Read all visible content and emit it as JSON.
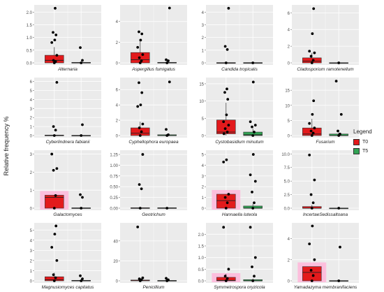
{
  "y_axis_title": "Relative frequency %",
  "legend": {
    "title": "Legend",
    "items": [
      {
        "label": "T0",
        "color": "#e31a1c"
      },
      {
        "label": "T5",
        "color": "#31a354"
      }
    ]
  },
  "colors": {
    "panel_background": "#ebebeb",
    "grid": "#ffffff",
    "T0": "#e31a1c",
    "T5": "#31a354",
    "highlight": "#ffb6d9",
    "point": "#000000"
  },
  "chart_data": [
    {
      "type": "box",
      "title": "Alternaria",
      "ylim": [
        0,
        2.2
      ],
      "yticks": [
        0,
        0.5,
        1.0,
        1.5,
        2.0
      ],
      "tick_labels": [
        "0.0",
        "0.5",
        "1.0",
        "1.5",
        "2.0"
      ],
      "series": [
        {
          "name": "T0",
          "q1": 0.0,
          "median": 0.1,
          "q3": 0.3,
          "whisker_low": 0.0,
          "whisker_high": 0.62,
          "points": [
            0.0,
            0.05,
            0.1,
            0.3,
            0.8,
            0.9,
            1.1,
            1.2,
            2.15
          ],
          "highlight": false
        },
        {
          "name": "T5",
          "q1": 0.0,
          "median": 0.0,
          "q3": 0.02,
          "whisker_low": 0.0,
          "whisker_high": 0.04,
          "points": [
            0.0,
            0.1,
            0.6
          ],
          "highlight": false
        }
      ]
    },
    {
      "type": "box",
      "title": "Aspergillus fumigatus",
      "ylim": [
        0,
        5.4
      ],
      "yticks": [
        0,
        2,
        4
      ],
      "tick_labels": [
        "0",
        "2",
        "4"
      ],
      "series": [
        {
          "name": "T0",
          "q1": 0.0,
          "median": 0.3,
          "q3": 1.0,
          "whisker_low": 0.0,
          "whisker_high": 2.2,
          "points": [
            0.0,
            0.2,
            0.5,
            0.8,
            1.5,
            2.2,
            2.8,
            3.0
          ],
          "highlight": false
        },
        {
          "name": "T5",
          "q1": 0.0,
          "median": 0.0,
          "q3": 0.05,
          "whisker_low": 0.0,
          "whisker_high": 0.1,
          "points": [
            0.0,
            0.2,
            0.3,
            5.3
          ],
          "highlight": false
        }
      ]
    },
    {
      "type": "box",
      "title": "Candida tropicalis",
      "ylim": [
        0,
        4.4
      ],
      "yticks": [
        0,
        1,
        2,
        3,
        4
      ],
      "tick_labels": [
        "0",
        "1",
        "2",
        "3",
        "4"
      ],
      "series": [
        {
          "name": "T0",
          "q1": 0.0,
          "median": 0.0,
          "q3": 0.02,
          "whisker_low": 0.0,
          "whisker_high": 0.04,
          "points": [
            0.0,
            1.05,
            1.3,
            4.3
          ],
          "highlight": false
        },
        {
          "name": "T5",
          "q1": 0.0,
          "median": 0.0,
          "q3": 0.02,
          "whisker_low": 0.0,
          "whisker_high": 0.04,
          "points": [
            0.0
          ],
          "highlight": false
        }
      ]
    },
    {
      "type": "box",
      "title": "Cladosporium ramotenellum",
      "ylim": [
        0,
        6.7
      ],
      "yticks": [
        0,
        2,
        4,
        6
      ],
      "tick_labels": [
        "0",
        "2",
        "4",
        "6"
      ],
      "series": [
        {
          "name": "T0",
          "q1": 0.0,
          "median": 0.2,
          "q3": 0.6,
          "whisker_low": 0.0,
          "whisker_high": 1.2,
          "points": [
            0.0,
            0.3,
            0.8,
            1.2,
            1.4,
            3.5,
            6.5
          ],
          "highlight": false
        },
        {
          "name": "T5",
          "q1": 0.0,
          "median": 0.0,
          "q3": 0.02,
          "whisker_low": 0.0,
          "whisker_high": 0.04,
          "points": [
            0.0
          ],
          "highlight": false
        }
      ]
    },
    {
      "type": "box",
      "title": "Cyberlindnera fabianii",
      "ylim": [
        0,
        6.2
      ],
      "yticks": [
        0,
        1,
        2,
        3,
        4,
        5,
        6
      ],
      "tick_labels": [
        "0",
        "1",
        "2",
        "3",
        "4",
        "5",
        "6"
      ],
      "series": [
        {
          "name": "T0",
          "q1": 0.0,
          "median": 0.0,
          "q3": 0.05,
          "whisker_low": 0.0,
          "whisker_high": 0.1,
          "points": [
            0.0,
            0.6,
            1.0,
            5.9
          ],
          "highlight": false
        },
        {
          "name": "T5",
          "q1": 0.0,
          "median": 0.0,
          "q3": 0.02,
          "whisker_low": 0.0,
          "whisker_high": 0.04,
          "points": [
            0.0,
            1.2
          ],
          "highlight": false
        }
      ]
    },
    {
      "type": "box",
      "title": "Cyphellophora europaea",
      "ylim": [
        0,
        7.3
      ],
      "yticks": [
        0,
        2,
        4,
        6
      ],
      "tick_labels": [
        "0",
        "2",
        "4",
        "6"
      ],
      "series": [
        {
          "name": "T0",
          "q1": 0.0,
          "median": 0.3,
          "q3": 1.0,
          "whisker_low": 0.0,
          "whisker_high": 1.8,
          "points": [
            0.0,
            0.5,
            1.0,
            1.5,
            3.8,
            4.0,
            5.6,
            6.9
          ],
          "highlight": false
        },
        {
          "name": "T5",
          "q1": 0.0,
          "median": 0.0,
          "q3": 0.1,
          "whisker_low": 0.0,
          "whisker_high": 0.2,
          "points": [
            0.0,
            0.1,
            0.8,
            7.0
          ],
          "highlight": false
        }
      ]
    },
    {
      "type": "box",
      "title": "Cystobasidium minutum",
      "ylim": [
        0,
        16.2
      ],
      "yticks": [
        0,
        5,
        10,
        15
      ],
      "tick_labels": [
        "0",
        "5",
        "10",
        "15"
      ],
      "series": [
        {
          "name": "T0",
          "q1": 0.5,
          "median": 1.0,
          "q3": 4.5,
          "whisker_low": 0.0,
          "whisker_high": 9.5,
          "points": [
            0.5,
            1.0,
            2.0,
            3.0,
            4.0,
            6.0,
            10.5,
            12.5,
            13.5
          ],
          "highlight": false
        },
        {
          "name": "T5",
          "q1": 0.0,
          "median": 0.2,
          "q3": 1.0,
          "whisker_low": 0.0,
          "whisker_high": 2.0,
          "points": [
            0.0,
            1.0,
            2.5,
            3.0,
            4.0,
            15.5
          ],
          "highlight": false
        }
      ]
    },
    {
      "type": "box",
      "title": "Fusarium",
      "ylim": [
        0,
        18.5
      ],
      "yticks": [
        0,
        5,
        10,
        15
      ],
      "tick_labels": [
        "0",
        "5",
        "10",
        "15"
      ],
      "series": [
        {
          "name": "T0",
          "q1": 0.0,
          "median": 0.5,
          "q3": 2.5,
          "whisker_low": 0.0,
          "whisker_high": 5.5,
          "points": [
            0.0,
            0.8,
            1.5,
            2.5,
            4.0,
            7.0,
            11.5
          ],
          "highlight": false
        },
        {
          "name": "T5",
          "q1": 0.0,
          "median": 0.0,
          "q3": 0.5,
          "whisker_low": 0.0,
          "whisker_high": 1.0,
          "points": [
            0.0,
            0.5,
            1.5,
            7.0,
            18.0
          ],
          "highlight": false
        }
      ]
    },
    {
      "type": "box",
      "title": "Galactomyces",
      "ylim": [
        0,
        3.1
      ],
      "yticks": [
        0,
        1,
        2,
        3
      ],
      "tick_labels": [
        "0",
        "1",
        "2",
        "3"
      ],
      "series": [
        {
          "name": "T0",
          "q1": 0.0,
          "median": 0.6,
          "q3": 0.72,
          "whisker_low": 0.0,
          "whisker_high": 0.72,
          "points": [
            0.0,
            0.7,
            2.1,
            2.2,
            3.0
          ],
          "highlight": true
        },
        {
          "name": "T5",
          "q1": 0.0,
          "median": 0.0,
          "q3": 0.02,
          "whisker_low": 0.0,
          "whisker_high": 0.04,
          "points": [
            0.0,
            0.6,
            0.75
          ],
          "highlight": false
        }
      ]
    },
    {
      "type": "box",
      "title": "Geotrichum",
      "ylim": [
        0,
        1.3
      ],
      "yticks": [
        0,
        0.25,
        0.5,
        0.75,
        1.0,
        1.25
      ],
      "tick_labels": [
        "0.00",
        "0.25",
        "0.50",
        "0.75",
        "1.00",
        "1.25"
      ],
      "series": [
        {
          "name": "T0",
          "q1": 0.0,
          "median": 0.0,
          "q3": 0.01,
          "whisker_low": 0.0,
          "whisker_high": 0.02,
          "points": [
            0.0,
            0.45,
            0.55,
            1.25
          ],
          "highlight": false
        },
        {
          "name": "T5",
          "q1": 0.0,
          "median": 0.0,
          "q3": 0.01,
          "whisker_low": 0.0,
          "whisker_high": 0.02,
          "points": [
            0.0
          ],
          "highlight": false
        }
      ]
    },
    {
      "type": "box",
      "title": "Hannaella luteola",
      "ylim": [
        0,
        5.2
      ],
      "yticks": [
        0,
        1,
        2,
        3,
        4,
        5
      ],
      "tick_labels": [
        "0",
        "1",
        "2",
        "3",
        "4",
        "5"
      ],
      "series": [
        {
          "name": "T0",
          "q1": 0.0,
          "median": 0.7,
          "q3": 1.3,
          "whisker_low": 0.0,
          "whisker_high": 1.3,
          "points": [
            0.0,
            0.5,
            1.0,
            1.3,
            4.3,
            4.5
          ],
          "highlight": true
        },
        {
          "name": "T5",
          "q1": 0.0,
          "median": 0.0,
          "q3": 0.2,
          "whisker_low": 0.0,
          "whisker_high": 0.4,
          "points": [
            0.0,
            0.5,
            1.5,
            2.5,
            3.1,
            5.0
          ],
          "highlight": false
        }
      ]
    },
    {
      "type": "box",
      "title": "IncertaeSedissaltoana",
      "ylim": [
        0,
        10.3
      ],
      "yticks": [
        0,
        2.5,
        5.0,
        7.5,
        10.0
      ],
      "tick_labels": [
        "0.0",
        "2.5",
        "5.0",
        "7.5",
        "10.0"
      ],
      "series": [
        {
          "name": "T0",
          "q1": 0.0,
          "median": 0.0,
          "q3": 0.3,
          "whisker_low": 0.0,
          "whisker_high": 0.6,
          "points": [
            0.0,
            1.0,
            2.5,
            5.2,
            9.8
          ],
          "highlight": false
        },
        {
          "name": "T5",
          "q1": 0.0,
          "median": 0.0,
          "q3": 0.02,
          "whisker_low": 0.0,
          "whisker_high": 0.04,
          "points": [
            0.0
          ],
          "highlight": false
        }
      ]
    },
    {
      "type": "box",
      "title": "Magnusiomyces capitatus",
      "ylim": [
        0,
        5.5
      ],
      "yticks": [
        0,
        1,
        2,
        3,
        4,
        5
      ],
      "tick_labels": [
        "0",
        "1",
        "2",
        "3",
        "4",
        "5"
      ],
      "series": [
        {
          "name": "T0",
          "q1": 0.0,
          "median": 0.1,
          "q3": 0.4,
          "whisker_low": 0.0,
          "whisker_high": 0.8,
          "points": [
            0.0,
            0.3,
            0.6,
            2.0,
            3.3,
            4.6,
            5.4
          ],
          "highlight": false
        },
        {
          "name": "T5",
          "q1": 0.0,
          "median": 0.0,
          "q3": 0.05,
          "whisker_low": 0.0,
          "whisker_high": 0.1,
          "points": [
            0.0,
            0.2,
            0.5
          ],
          "highlight": false
        }
      ]
    },
    {
      "type": "box",
      "title": "Penicillium",
      "ylim": [
        0,
        56
      ],
      "yticks": [
        0,
        20,
        40
      ],
      "tick_labels": [
        "0",
        "20",
        "40"
      ],
      "series": [
        {
          "name": "T0",
          "q1": 0.0,
          "median": 0.2,
          "q3": 0.8,
          "whisker_low": 0.0,
          "whisker_high": 1.5,
          "points": [
            0.0,
            1.0,
            2.0,
            3.0,
            54.0
          ],
          "highlight": false
        },
        {
          "name": "T5",
          "q1": 0.0,
          "median": 0.0,
          "q3": 0.4,
          "whisker_low": 0.0,
          "whisker_high": 0.8,
          "points": [
            0.0,
            1.0,
            2.5
          ],
          "highlight": false
        }
      ]
    },
    {
      "type": "box",
      "title": "Symmetrospora oryzicola",
      "ylim": [
        0,
        2.4
      ],
      "yticks": [
        0,
        0.5,
        1.0,
        1.5,
        2.0
      ],
      "tick_labels": [
        "0.0",
        "0.5",
        "1.0",
        "1.5",
        "2.0"
      ],
      "series": [
        {
          "name": "T0",
          "q1": 0.0,
          "median": 0.02,
          "q3": 0.15,
          "whisker_low": 0.0,
          "whisker_high": 0.3,
          "points": [
            0.0,
            0.1,
            0.2,
            0.5,
            2.3
          ],
          "highlight": true
        },
        {
          "name": "T5",
          "q1": 0.0,
          "median": 0.0,
          "q3": 0.05,
          "whisker_low": 0.0,
          "whisker_high": 0.1,
          "points": [
            0.0,
            0.2,
            0.6,
            1.0,
            2.3
          ],
          "highlight": false
        }
      ]
    },
    {
      "type": "box",
      "title": "Yamadazyma membranifaciens",
      "ylim": [
        0,
        5.3
      ],
      "yticks": [
        0,
        2,
        4
      ],
      "tick_labels": [
        "0",
        "2",
        "4"
      ],
      "series": [
        {
          "name": "T0",
          "q1": 0.0,
          "median": 0.8,
          "q3": 1.35,
          "whisker_low": 0.0,
          "whisker_high": 1.35,
          "points": [
            0.0,
            0.5,
            1.0,
            2.0,
            3.5,
            5.2
          ],
          "highlight": true
        },
        {
          "name": "T5",
          "q1": 0.0,
          "median": 0.0,
          "q3": 0.02,
          "whisker_low": 0.0,
          "whisker_high": 0.04,
          "points": [
            0.0,
            3.2
          ],
          "highlight": false
        }
      ]
    }
  ]
}
